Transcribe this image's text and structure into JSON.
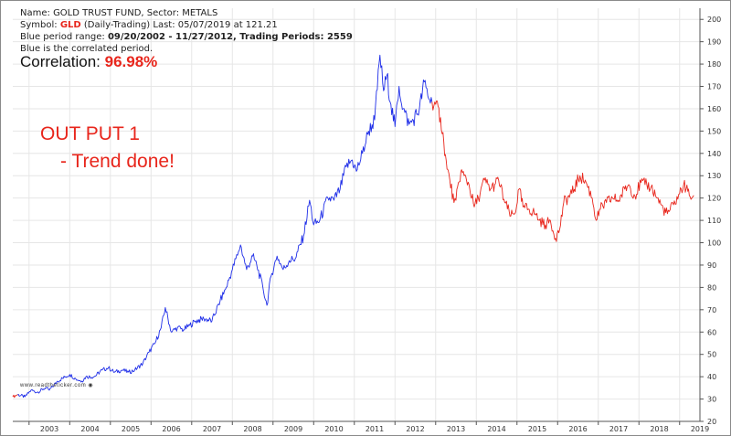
{
  "header": {
    "line1_prefix": "Name: ",
    "name": "GOLD TRUST FUND, Sector: METALS",
    "line2_prefix": "Symbol: ",
    "symbol": "GLD",
    "line2_rest": " (Daily-Trading) Last: 05/07/2019 at 121.21",
    "line3_prefix": "Blue period range: ",
    "range": "09/20/2002 - 11/27/2012, Trading Periods: 2559",
    "line4": "Blue is the correlated period."
  },
  "correlation": {
    "label": "Correlation: ",
    "value": "96.98%"
  },
  "annotation": {
    "line1": "OUT PUT 1",
    "line2": "- Trend done!"
  },
  "watermark": "www.readtheticker.com",
  "colors": {
    "correlated": "#1f2ee8",
    "other": "#e8261c",
    "grid": "#e6e6e6",
    "axis": "#555555"
  },
  "chart_data": {
    "type": "line",
    "title": "",
    "xlabel": "",
    "ylabel": "",
    "ylim": [
      20,
      205
    ],
    "xlim": [
      2002.6,
      2019.5
    ],
    "grid": true,
    "y_ticks": [
      20,
      30,
      40,
      50,
      60,
      70,
      80,
      90,
      100,
      110,
      120,
      130,
      140,
      150,
      160,
      170,
      180,
      190,
      200
    ],
    "x_ticks": [
      "2003",
      "2004",
      "2005",
      "2006",
      "2007",
      "2008",
      "2009",
      "2010",
      "2011",
      "2012",
      "2013",
      "2014",
      "2015",
      "2016",
      "2017",
      "2018",
      "2019"
    ],
    "series": [
      {
        "color": "#e8261c",
        "points": [
          [
            2002.6,
            31
          ],
          [
            2002.72,
            32
          ]
        ]
      },
      {
        "color": "#1f2ee8",
        "points": [
          [
            2002.72,
            32
          ],
          [
            2002.9,
            31
          ],
          [
            2003.05,
            34
          ],
          [
            2003.2,
            33
          ],
          [
            2003.4,
            35
          ],
          [
            2003.5,
            34
          ],
          [
            2003.7,
            38
          ],
          [
            2003.9,
            40
          ],
          [
            2004.0,
            41
          ],
          [
            2004.15,
            39
          ],
          [
            2004.3,
            38
          ],
          [
            2004.4,
            40
          ],
          [
            2004.6,
            40
          ],
          [
            2004.8,
            43
          ],
          [
            2004.95,
            44
          ],
          [
            2005.1,
            42
          ],
          [
            2005.3,
            43
          ],
          [
            2005.45,
            42
          ],
          [
            2005.6,
            43
          ],
          [
            2005.8,
            46
          ],
          [
            2005.95,
            51
          ],
          [
            2006.1,
            55
          ],
          [
            2006.25,
            62
          ],
          [
            2006.35,
            71
          ],
          [
            2006.5,
            60
          ],
          [
            2006.65,
            62
          ],
          [
            2006.8,
            61
          ],
          [
            2006.95,
            63
          ],
          [
            2007.1,
            65
          ],
          [
            2007.3,
            66
          ],
          [
            2007.5,
            65
          ],
          [
            2007.7,
            74
          ],
          [
            2007.85,
            80
          ],
          [
            2008.0,
            88
          ],
          [
            2008.15,
            96
          ],
          [
            2008.2,
            99
          ],
          [
            2008.35,
            88
          ],
          [
            2008.5,
            94
          ],
          [
            2008.6,
            90
          ],
          [
            2008.75,
            80
          ],
          [
            2008.85,
            72
          ],
          [
            2008.95,
            85
          ],
          [
            2009.1,
            94
          ],
          [
            2009.25,
            88
          ],
          [
            2009.4,
            92
          ],
          [
            2009.55,
            93
          ],
          [
            2009.75,
            103
          ],
          [
            2009.9,
            119
          ],
          [
            2010.0,
            108
          ],
          [
            2010.15,
            110
          ],
          [
            2010.35,
            120
          ],
          [
            2010.5,
            119
          ],
          [
            2010.65,
            124
          ],
          [
            2010.8,
            134
          ],
          [
            2010.95,
            137
          ],
          [
            2011.05,
            132
          ],
          [
            2011.2,
            140
          ],
          [
            2011.35,
            150
          ],
          [
            2011.5,
            155
          ],
          [
            2011.63,
            184
          ],
          [
            2011.72,
            168
          ],
          [
            2011.8,
            175
          ],
          [
            2011.9,
            162
          ],
          [
            2012.0,
            152
          ],
          [
            2012.1,
            170
          ],
          [
            2012.2,
            160
          ],
          [
            2012.35,
            153
          ],
          [
            2012.45,
            155
          ],
          [
            2012.6,
            160
          ],
          [
            2012.72,
            172
          ],
          [
            2012.85,
            164
          ],
          [
            2012.91,
            163
          ]
        ]
      },
      {
        "color": "#e8261c",
        "points": [
          [
            2012.91,
            163
          ],
          [
            2013.0,
            162
          ],
          [
            2013.12,
            156
          ],
          [
            2013.2,
            145
          ],
          [
            2013.28,
            133
          ],
          [
            2013.35,
            128
          ],
          [
            2013.45,
            118
          ],
          [
            2013.5,
            119
          ],
          [
            2013.62,
            132
          ],
          [
            2013.7,
            130
          ],
          [
            2013.82,
            126
          ],
          [
            2013.95,
            116
          ],
          [
            2014.05,
            120
          ],
          [
            2014.2,
            128
          ],
          [
            2014.35,
            124
          ],
          [
            2014.45,
            126
          ],
          [
            2014.55,
            128
          ],
          [
            2014.7,
            118
          ],
          [
            2014.85,
            112
          ],
          [
            2014.95,
            113
          ],
          [
            2015.05,
            124
          ],
          [
            2015.15,
            116
          ],
          [
            2015.3,
            115
          ],
          [
            2015.45,
            113
          ],
          [
            2015.55,
            110
          ],
          [
            2015.7,
            108
          ],
          [
            2015.82,
            110
          ],
          [
            2015.95,
            102
          ],
          [
            2016.05,
            106
          ],
          [
            2016.15,
            118
          ],
          [
            2016.35,
            122
          ],
          [
            2016.55,
            130
          ],
          [
            2016.7,
            127
          ],
          [
            2016.85,
            120
          ],
          [
            2016.95,
            110
          ],
          [
            2017.05,
            115
          ],
          [
            2017.2,
            118
          ],
          [
            2017.35,
            120
          ],
          [
            2017.5,
            119
          ],
          [
            2017.65,
            124
          ],
          [
            2017.75,
            126
          ],
          [
            2017.9,
            121
          ],
          [
            2018.05,
            127
          ],
          [
            2018.15,
            126
          ],
          [
            2018.3,
            125
          ],
          [
            2018.45,
            120
          ],
          [
            2018.6,
            115
          ],
          [
            2018.7,
            113
          ],
          [
            2018.85,
            117
          ],
          [
            2019.0,
            122
          ],
          [
            2019.1,
            126
          ],
          [
            2019.2,
            123
          ],
          [
            2019.3,
            120
          ],
          [
            2019.35,
            121.21
          ]
        ]
      }
    ]
  }
}
